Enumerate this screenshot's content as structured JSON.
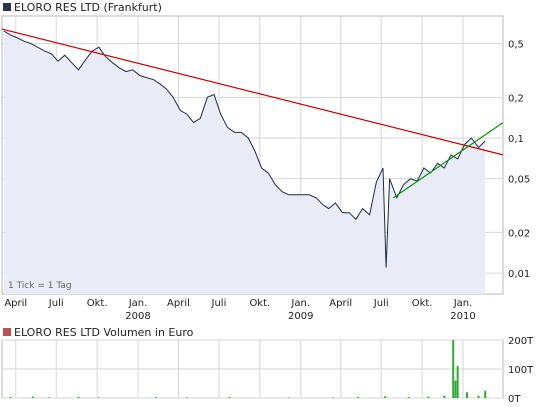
{
  "legend": {
    "price_series": "ELORO RES LTD (Frankfurt)",
    "volume_series": "ELORO RES LTD Volumen in Euro"
  },
  "note": "1 Tick = 1 Tag",
  "colors": {
    "price_line": "#1f2a44",
    "price_fill": "#e9ecf7",
    "trend_down": "#cc0000",
    "trend_up": "#009900",
    "volume_bars": "#33aa33",
    "price_legend_swatch": "#2a3350",
    "volume_legend_swatch": "#c0504d"
  },
  "chart_data": [
    {
      "type": "line",
      "series": [
        {
          "name": "ELORO RES LTD (Frankfurt)",
          "x": [
            "2007-03-05",
            "2007-03-20",
            "2007-04-05",
            "2007-04-20",
            "2007-05-05",
            "2007-05-20",
            "2007-06-05",
            "2007-06-20",
            "2007-07-05",
            "2007-07-20",
            "2007-08-05",
            "2007-08-20",
            "2007-09-05",
            "2007-09-20",
            "2007-10-05",
            "2007-10-20",
            "2007-11-05",
            "2007-11-20",
            "2007-12-05",
            "2007-12-20",
            "2008-01-05",
            "2008-01-20",
            "2008-02-05",
            "2008-02-20",
            "2008-03-05",
            "2008-03-20",
            "2008-04-05",
            "2008-04-20",
            "2008-05-05",
            "2008-05-20",
            "2008-06-05",
            "2008-06-20",
            "2008-07-05",
            "2008-07-20",
            "2008-08-05",
            "2008-08-20",
            "2008-09-05",
            "2008-09-20",
            "2008-10-05",
            "2008-10-20",
            "2008-11-05",
            "2008-11-20",
            "2008-12-05",
            "2008-12-20",
            "2009-01-05",
            "2009-01-20",
            "2009-02-05",
            "2009-02-20",
            "2009-03-05",
            "2009-03-20",
            "2009-04-05",
            "2009-04-20",
            "2009-05-05",
            "2009-05-20",
            "2009-06-05",
            "2009-06-20",
            "2009-07-05",
            "2009-07-12",
            "2009-07-20",
            "2009-08-05",
            "2009-08-20",
            "2009-09-05",
            "2009-09-20",
            "2009-10-05",
            "2009-10-20",
            "2009-11-05",
            "2009-11-20",
            "2009-12-05",
            "2009-12-20",
            "2010-01-05",
            "2010-01-20",
            "2010-02-05",
            "2010-02-20"
          ],
          "values": [
            0.62,
            0.58,
            0.55,
            0.52,
            0.5,
            0.47,
            0.44,
            0.42,
            0.37,
            0.41,
            0.36,
            0.32,
            0.38,
            0.44,
            0.47,
            0.4,
            0.36,
            0.33,
            0.31,
            0.32,
            0.29,
            0.28,
            0.27,
            0.25,
            0.23,
            0.2,
            0.16,
            0.15,
            0.13,
            0.14,
            0.2,
            0.21,
            0.15,
            0.12,
            0.11,
            0.11,
            0.1,
            0.08,
            0.06,
            0.055,
            0.045,
            0.04,
            0.038,
            0.038,
            0.038,
            0.038,
            0.036,
            0.032,
            0.03,
            0.033,
            0.028,
            0.028,
            0.025,
            0.03,
            0.027,
            0.047,
            0.06,
            0.011,
            0.05,
            0.036,
            0.045,
            0.05,
            0.048,
            0.06,
            0.055,
            0.065,
            0.06,
            0.075,
            0.07,
            0.09,
            0.1,
            0.085,
            0.095
          ]
        }
      ],
      "trendlines": [
        {
          "start": [
            "2007-03-01",
            0.64
          ],
          "end": [
            "2010-04-01",
            0.075
          ]
        },
        {
          "start": [
            "2009-07-28",
            0.036
          ],
          "end": [
            "2010-04-01",
            0.13
          ]
        }
      ],
      "y_scale": "log",
      "ylim": [
        0.007,
        0.8
      ],
      "x_range": [
        "2007-03-01",
        "2010-04-01"
      ],
      "y_ticks": [
        {
          "value": 0.5,
          "label": "0,5"
        },
        {
          "value": 0.2,
          "label": "0,2"
        },
        {
          "value": 0.1,
          "label": "0,1"
        },
        {
          "value": 0.05,
          "label": "0,05"
        },
        {
          "value": 0.02,
          "label": "0,02"
        },
        {
          "value": 0.01,
          "label": "0,01"
        }
      ],
      "x_ticks": [
        {
          "date": "2007-04-01",
          "label": "April",
          "year_label": ""
        },
        {
          "date": "2007-07-01",
          "label": "Juli",
          "year_label": ""
        },
        {
          "date": "2007-10-01",
          "label": "Okt.",
          "year_label": ""
        },
        {
          "date": "2008-01-01",
          "label": "Jan.",
          "year_label": "2008"
        },
        {
          "date": "2008-04-01",
          "label": "April",
          "year_label": ""
        },
        {
          "date": "2008-07-01",
          "label": "Juli",
          "year_label": ""
        },
        {
          "date": "2008-10-01",
          "label": "Okt.",
          "year_label": ""
        },
        {
          "date": "2009-01-01",
          "label": "Jan.",
          "year_label": "2009"
        },
        {
          "date": "2009-04-01",
          "label": "April",
          "year_label": ""
        },
        {
          "date": "2009-07-01",
          "label": "Juli",
          "year_label": ""
        },
        {
          "date": "2009-10-01",
          "label": "Okt.",
          "year_label": ""
        },
        {
          "date": "2010-01-01",
          "label": "Jan.",
          "year_label": "2010"
        }
      ],
      "grid": true,
      "legend_position": "top-left"
    },
    {
      "type": "bar",
      "series": [
        {
          "name": "ELORO RES LTD Volumen in Euro",
          "x": [
            "2007-03-20",
            "2007-05-10",
            "2007-06-15",
            "2007-08-20",
            "2007-10-05",
            "2008-02-10",
            "2008-04-20",
            "2008-07-25",
            "2008-12-05",
            "2009-03-15",
            "2009-05-10",
            "2009-07-10",
            "2009-09-01",
            "2009-10-15",
            "2009-11-20",
            "2009-12-10",
            "2009-12-15",
            "2009-12-20",
            "2010-01-10",
            "2010-02-05",
            "2010-02-20"
          ],
          "values": [
            3,
            5,
            2,
            4,
            2,
            3,
            2,
            3,
            2,
            2,
            4,
            6,
            3,
            5,
            8,
            200,
            60,
            110,
            20,
            8,
            25
          ]
        }
      ],
      "ylim": [
        0,
        200
      ],
      "y_ticks": [
        {
          "value": 200,
          "label": "200T"
        },
        {
          "value": 100,
          "label": "100T"
        },
        {
          "value": 0,
          "label": "0T"
        }
      ],
      "grid": true,
      "legend_position": "top-left"
    }
  ]
}
